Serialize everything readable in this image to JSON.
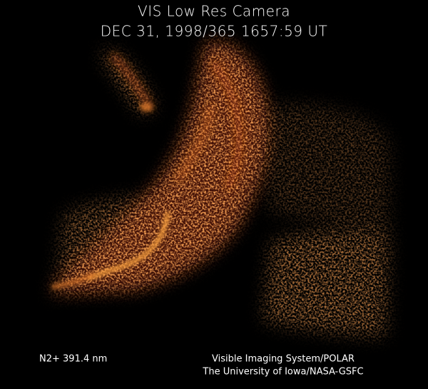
{
  "title": "VIS Low Res Camera",
  "subtitle": "DEC 31, 1998/365 1657:59 UT",
  "filter_label": "N2+ 391.4 nm",
  "credit": [
    "Visible Imaging System/POLAR",
    "The University of Iowa/NASA-GSFC"
  ]
}
